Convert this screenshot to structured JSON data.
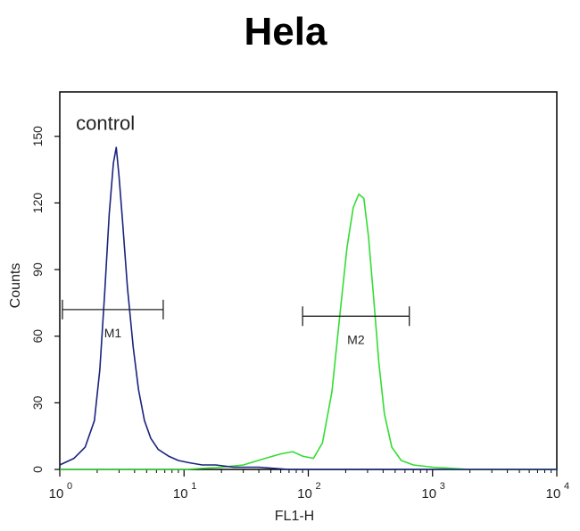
{
  "chart_data": {
    "type": "line",
    "title": "Hela",
    "xlabel": "FL1-H",
    "ylabel": "Counts",
    "x_scale": "log",
    "xlim": [
      1,
      10000
    ],
    "ylim": [
      0,
      170
    ],
    "x_ticks": [
      {
        "value": 1,
        "base": "10",
        "exp": "0"
      },
      {
        "value": 10,
        "base": "10",
        "exp": "1"
      },
      {
        "value": 100,
        "base": "10",
        "exp": "2"
      },
      {
        "value": 1000,
        "base": "10",
        "exp": "3"
      },
      {
        "value": 10000,
        "base": "10",
        "exp": "4"
      }
    ],
    "y_ticks": [
      "0",
      "30",
      "60",
      "90",
      "120",
      "150"
    ],
    "annotations": [
      {
        "text": "control",
        "x": 1.35,
        "y": 153
      }
    ],
    "grid": false,
    "series": [
      {
        "name": "control",
        "color": "#1a237e",
        "points": [
          [
            1.0,
            2
          ],
          [
            1.3,
            5
          ],
          [
            1.6,
            10
          ],
          [
            1.9,
            22
          ],
          [
            2.1,
            45
          ],
          [
            2.3,
            80
          ],
          [
            2.5,
            115
          ],
          [
            2.7,
            138
          ],
          [
            2.85,
            145
          ],
          [
            3.0,
            132
          ],
          [
            3.2,
            112
          ],
          [
            3.5,
            82
          ],
          [
            3.9,
            55
          ],
          [
            4.3,
            36
          ],
          [
            4.8,
            22
          ],
          [
            5.4,
            14
          ],
          [
            6.2,
            9
          ],
          [
            7.5,
            6
          ],
          [
            9.0,
            4
          ],
          [
            11,
            3
          ],
          [
            14,
            2
          ],
          [
            18,
            2
          ],
          [
            25,
            1
          ],
          [
            40,
            1
          ],
          [
            70,
            0
          ],
          [
            100,
            0
          ],
          [
            1000,
            0
          ],
          [
            10000,
            0
          ]
        ]
      },
      {
        "name": "",
        "color": "#33dd33",
        "points": [
          [
            1.0,
            0
          ],
          [
            10,
            0
          ],
          [
            20,
            1
          ],
          [
            30,
            2
          ],
          [
            45,
            5
          ],
          [
            60,
            7
          ],
          [
            75,
            8
          ],
          [
            90,
            6
          ],
          [
            110,
            5
          ],
          [
            130,
            12
          ],
          [
            155,
            35
          ],
          [
            180,
            70
          ],
          [
            205,
            100
          ],
          [
            230,
            118
          ],
          [
            255,
            124
          ],
          [
            280,
            122
          ],
          [
            305,
            105
          ],
          [
            335,
            78
          ],
          [
            370,
            48
          ],
          [
            410,
            25
          ],
          [
            470,
            10
          ],
          [
            560,
            4
          ],
          [
            700,
            2
          ],
          [
            1000,
            1
          ],
          [
            2000,
            0
          ],
          [
            10000,
            0
          ]
        ]
      }
    ],
    "markers": [
      {
        "label": "M1",
        "x_start": 1.05,
        "x_end": 6.8,
        "y": 72
      },
      {
        "label": "M2",
        "x_start": 90,
        "x_end": 650,
        "y": 69
      }
    ]
  }
}
